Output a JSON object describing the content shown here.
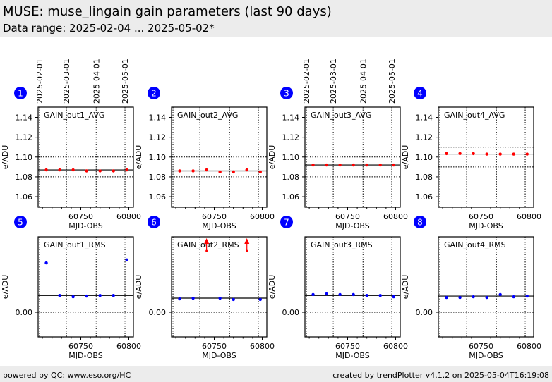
{
  "header": {
    "title": "MUSE: muse_lingain gain parameters (last 90 days)",
    "range": "Data range: 2025-02-04 ... 2025-05-02*"
  },
  "footer": {
    "left": "powered by QC: www.eso.org/HC",
    "right": "created by trendPlotter v4.1.2 on 2025-05-04T16:19:08"
  },
  "colors": {
    "avg": "#ff0000",
    "rms": "#0000ff",
    "badge": "#0000ff"
  },
  "chart_data": {
    "type": "scatter",
    "xlabel": "MJD-OBS",
    "ylabel": "e/ADU",
    "xlim": [
      60705.5,
      60804.8
    ],
    "xticks": [
      60750,
      60800
    ],
    "date_ticks": [
      {
        "label": "2025-02-01",
        "mjd": 60707
      },
      {
        "label": "2025-03-01",
        "mjd": 60735
      },
      {
        "label": "2025-04-01",
        "mjd": 60766
      },
      {
        "label": "2025-05-01",
        "mjd": 60796
      }
    ],
    "date_tick_panels": [
      1,
      3
    ],
    "x": [
      60714,
      60728,
      60742,
      60756,
      60770,
      60784,
      60798
    ],
    "panels": [
      {
        "id": "1",
        "title": "GAIN_out1_AVG",
        "kind": "avg",
        "ylim": [
          1.0494,
          1.1503
        ],
        "yticks": [
          "1.06",
          "1.08",
          "1.10",
          "1.12",
          "1.14"
        ],
        "ref": 1.087,
        "limits": [
          1.08,
          1.1
        ],
        "values": [
          1.087,
          1.087,
          1.087,
          1.086,
          1.086,
          1.086,
          1.087
        ]
      },
      {
        "id": "2",
        "title": "GAIN_out2_AVG",
        "kind": "avg",
        "ylim": [
          1.0494,
          1.1503
        ],
        "yticks": [
          "1.06",
          "1.08",
          "1.10",
          "1.12",
          "1.14"
        ],
        "ref": 1.086,
        "limits": [
          1.08,
          1.1
        ],
        "values": [
          1.086,
          1.086,
          1.087,
          1.085,
          1.085,
          1.087,
          1.085
        ]
      },
      {
        "id": "3",
        "title": "GAIN_out3_AVG",
        "kind": "avg",
        "ylim": [
          1.0494,
          1.1503
        ],
        "yticks": [
          "1.06",
          "1.08",
          "1.10",
          "1.12",
          "1.14"
        ],
        "ref": 1.092,
        "limits": [
          1.08,
          1.1
        ],
        "values": [
          1.092,
          1.092,
          1.092,
          1.092,
          1.092,
          1.092,
          1.092
        ]
      },
      {
        "id": "4",
        "title": "GAIN_out4_AVG",
        "kind": "avg",
        "ylim": [
          1.0494,
          1.1503
        ],
        "yticks": [
          "1.06",
          "1.08",
          "1.10",
          "1.12",
          "1.14"
        ],
        "ref": 1.103,
        "limits": [
          1.09,
          1.11
        ],
        "values": [
          1.1035,
          1.1035,
          1.1035,
          1.103,
          1.103,
          1.103,
          1.103
        ]
      },
      {
        "id": "5",
        "title": "GAIN_out1_RMS",
        "kind": "rms",
        "ylim": [
          -0.025,
          0.0765
        ],
        "yticks": [
          "0.00"
        ],
        "ref": 0.017,
        "limits": [
          0.0
        ],
        "values": [
          0.05,
          0.017,
          0.0157,
          0.0164,
          0.017,
          0.017,
          0.053
        ]
      },
      {
        "id": "6",
        "title": "GAIN_out2_RMS",
        "kind": "rms",
        "ylim": [
          -0.025,
          0.0765
        ],
        "yticks": [
          "0.00"
        ],
        "ref": 0.0143,
        "limits": [
          0.0
        ],
        "values": [
          0.0136,
          0.0143,
          "off-scale-high",
          0.0143,
          0.0129,
          "off-scale-high",
          0.0129
        ]
      },
      {
        "id": "7",
        "title": "GAIN_out3_RMS",
        "kind": "rms",
        "ylim": [
          -0.025,
          0.0765
        ],
        "yticks": [
          "0.00"
        ],
        "ref": 0.017,
        "limits": [
          0.0
        ],
        "values": [
          0.0179,
          0.0186,
          0.0179,
          0.0179,
          0.017,
          0.017,
          0.0157
        ]
      },
      {
        "id": "8",
        "title": "GAIN_out4_RMS",
        "kind": "rms",
        "ylim": [
          -0.025,
          0.0765
        ],
        "yticks": [
          "0.00"
        ],
        "ref": 0.0164,
        "limits": [
          0.0
        ],
        "values": [
          0.015,
          0.015,
          0.0157,
          0.015,
          0.0179,
          0.0157,
          0.0164
        ]
      }
    ]
  }
}
